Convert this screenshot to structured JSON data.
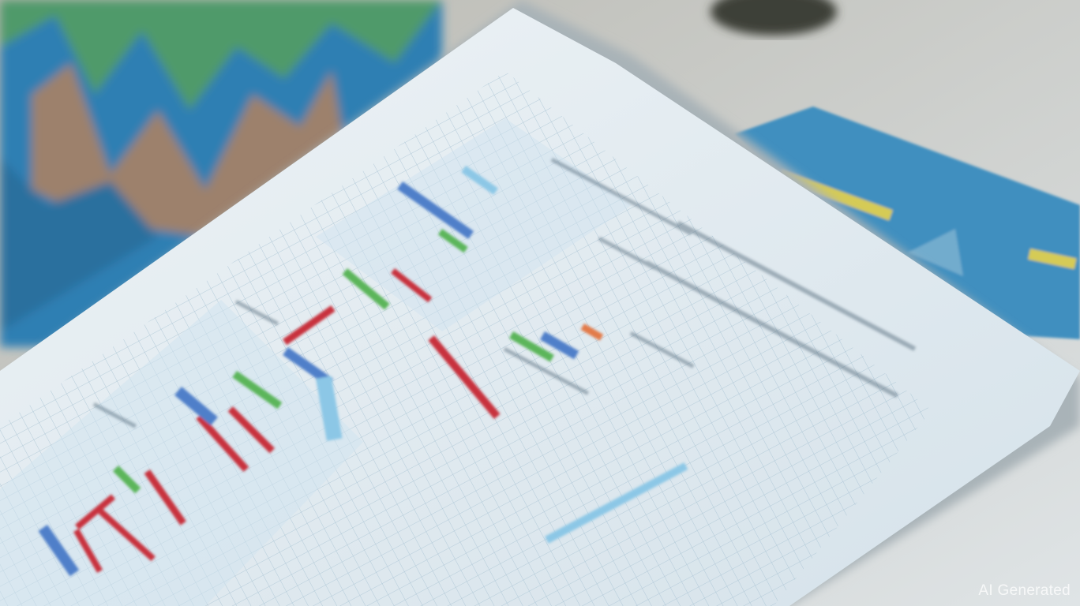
{
  "watermark": {
    "text": "AI Generated"
  },
  "colors": {
    "background_chart_blue": "#2f7fb3",
    "background_chart_green": "#4f9a6a",
    "background_chart_orange": "#b9825a",
    "paper": "#e6eef2",
    "grid": "#a9c3d3",
    "bar_red": "#c8323c",
    "bar_blue": "#4f7fc9",
    "bar_green": "#5bb55a",
    "bar_light_blue": "#8cc7e6",
    "book_cover": "#3f8fbf",
    "book_title_yellow": "#e5d24a"
  }
}
